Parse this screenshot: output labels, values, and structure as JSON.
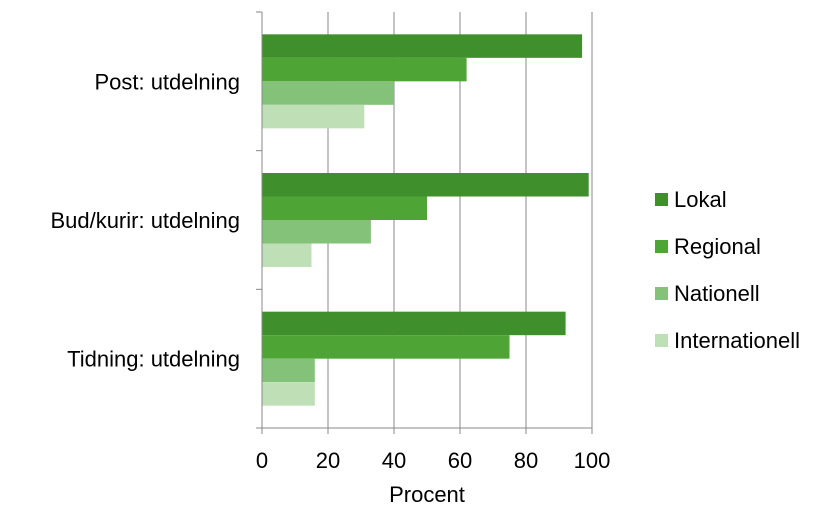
{
  "chart_data": {
    "type": "bar",
    "orientation": "horizontal",
    "categories": [
      "Post: utdelning",
      "Bud/kurir: utdelning",
      "Tidning: utdelning"
    ],
    "series": [
      {
        "name": "Lokal",
        "color": "#3f8f2d",
        "values": [
          97,
          99,
          92
        ]
      },
      {
        "name": "Regional",
        "color": "#4ea535",
        "values": [
          62,
          50,
          75
        ]
      },
      {
        "name": "Nationell",
        "color": "#84c27a",
        "values": [
          40,
          33,
          16
        ]
      },
      {
        "name": "Internationell",
        "color": "#bfe0b7",
        "values": [
          31,
          15,
          16
        ]
      }
    ],
    "xlabel": "Procent",
    "ylabel": "",
    "xlim": [
      0,
      100
    ],
    "xticks": [
      "0",
      "20",
      "40",
      "60",
      "80",
      "100"
    ],
    "grid": "vertical",
    "legend_position": "right"
  }
}
